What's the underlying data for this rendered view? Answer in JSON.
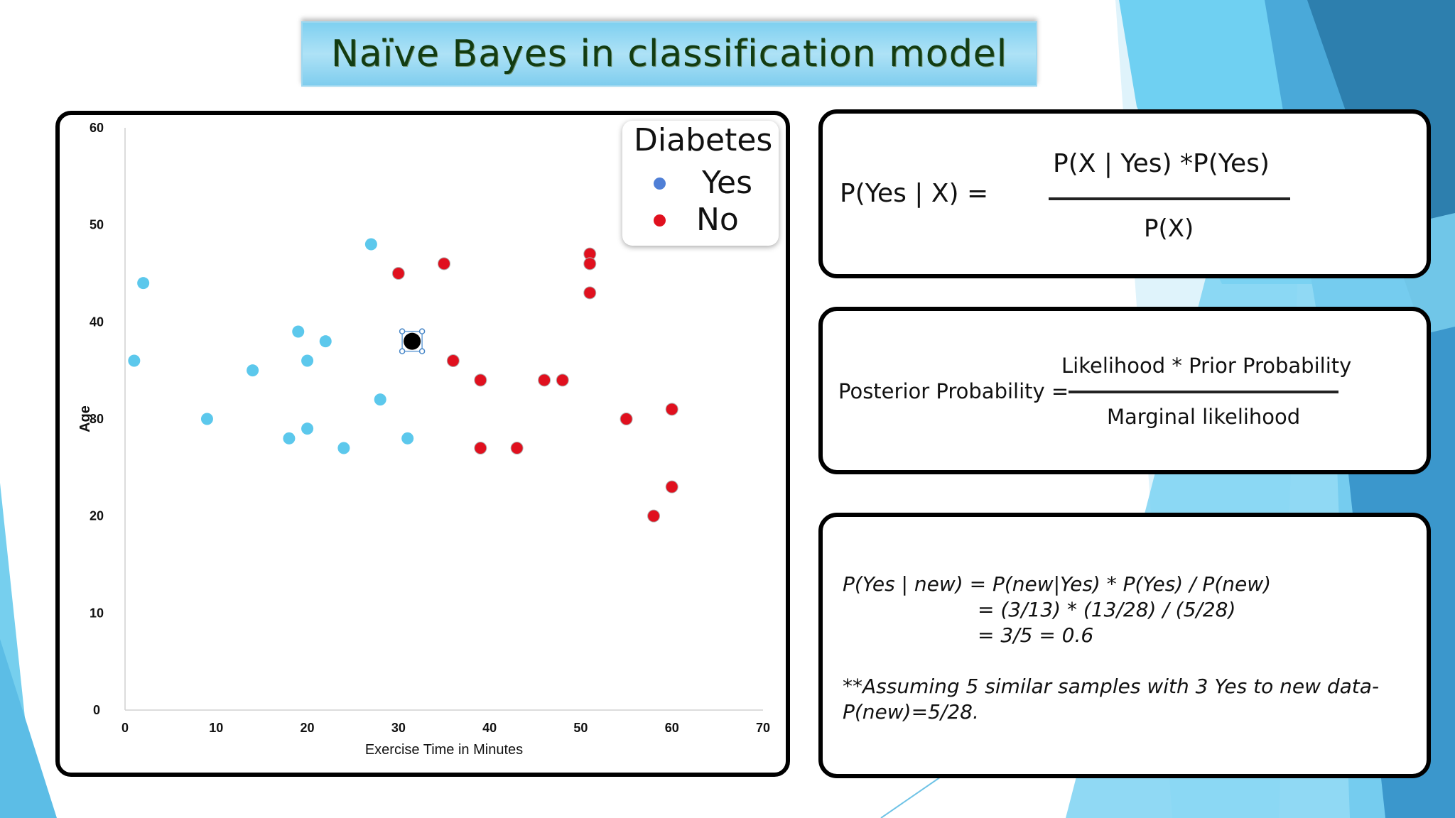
{
  "title": "Naïve Bayes in classification model",
  "chart_data": {
    "type": "scatter",
    "xlabel": "Exercise Time in Minutes",
    "ylabel": "Age",
    "xlim": [
      0,
      70
    ],
    "ylim": [
      0,
      60
    ],
    "x_ticks": [
      "0",
      "10",
      "20",
      "30",
      "40",
      "50",
      "60",
      "70"
    ],
    "y_ticks": [
      "0",
      "10",
      "20",
      "30",
      "40",
      "50",
      "60"
    ],
    "legend_title": "Diabetes",
    "legend_position": "top-right",
    "series": [
      {
        "name": "Yes",
        "color": "#5cc8ec",
        "legend_color": "#4f7fd6",
        "points": [
          [
            1,
            36
          ],
          [
            2,
            44
          ],
          [
            9,
            30
          ],
          [
            14,
            35
          ],
          [
            18,
            28
          ],
          [
            19,
            39
          ],
          [
            20,
            36
          ],
          [
            20,
            29
          ],
          [
            22,
            38
          ],
          [
            24,
            27
          ],
          [
            27,
            48
          ],
          [
            28,
            32
          ],
          [
            31,
            28
          ]
        ]
      },
      {
        "name": "No",
        "color": "#e0101e",
        "legend_color": "#e0101e",
        "points": [
          [
            30,
            45
          ],
          [
            35,
            46
          ],
          [
            36,
            36
          ],
          [
            39,
            34
          ],
          [
            39,
            27
          ],
          [
            43,
            27
          ],
          [
            46,
            34
          ],
          [
            48,
            34
          ],
          [
            51,
            47
          ],
          [
            51,
            46
          ],
          [
            51,
            43
          ],
          [
            55,
            30
          ],
          [
            58,
            20
          ],
          [
            60,
            31
          ],
          [
            60,
            23
          ]
        ]
      }
    ],
    "new_point": {
      "x": 31.5,
      "y": 38,
      "color": "#000000"
    }
  },
  "bayes_formula": {
    "lhs": "P(Yes | X) =",
    "numerator": "P(X | Yes) *P(Yes)",
    "denominator": "P(X)"
  },
  "posterior_formula": {
    "lhs": "Posterior Probability =",
    "numerator": "Likelihood * Prior Probability",
    "denominator": "Marginal likelihood"
  },
  "calculation": {
    "line1": "P(Yes | new) = P(new|Yes) * P(Yes) / P(new)",
    "line2": "= (3/13) * (13/28) / (5/28)",
    "line3": "= 3/5  = 0.6",
    "note1": "**Assuming 5 similar samples with 3 Yes to new data-",
    "note2": "P(new)=5/28."
  }
}
